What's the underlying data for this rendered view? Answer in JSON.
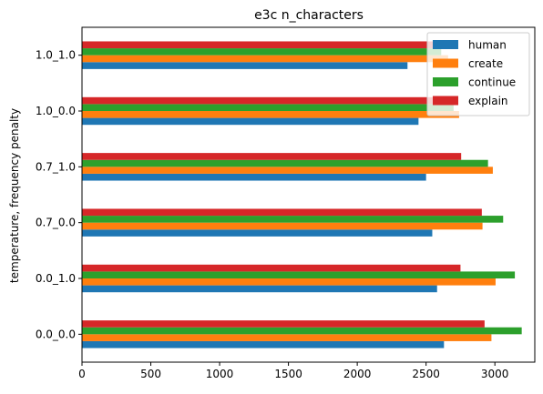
{
  "chart_data": {
    "type": "bar",
    "orientation": "horizontal",
    "title": "e3c n_characters",
    "xlabel": "",
    "ylabel": "temperature, frequency penalty",
    "categories": [
      "0.0_0.0",
      "0.0_1.0",
      "0.7_0.0",
      "0.7_1.0",
      "1.0_0.0",
      "1.0_1.0"
    ],
    "xlim": [
      0,
      3290
    ],
    "xticks": [
      0,
      500,
      1000,
      1500,
      2000,
      2500,
      3000
    ],
    "series": [
      {
        "name": "human",
        "color": "#1f77b4",
        "values": [
          2630,
          2580,
          2545,
          2500,
          2445,
          2365
        ]
      },
      {
        "name": "create",
        "color": "#ff7f0e",
        "values": [
          2975,
          3005,
          2910,
          2985,
          2740,
          2660
        ]
      },
      {
        "name": "continue",
        "color": "#2ca02c",
        "values": [
          3195,
          3145,
          3060,
          2950,
          2700,
          2610
        ]
      },
      {
        "name": "explain",
        "color": "#d62728",
        "values": [
          2925,
          2750,
          2905,
          2755,
          2715,
          2655
        ]
      }
    ],
    "legend": "top-right",
    "grid": false
  }
}
